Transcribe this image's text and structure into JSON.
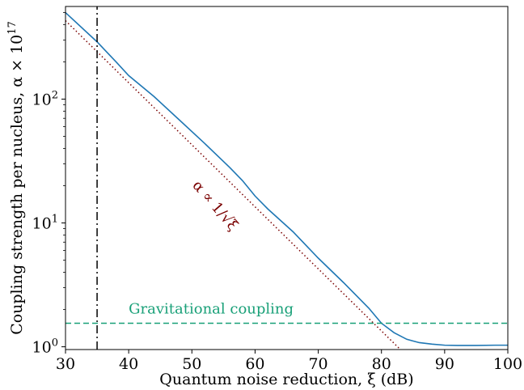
{
  "chart_data": {
    "type": "line",
    "xlabel": "Quantum noise reduction, ξ (dB)",
    "ylabel": "Coupling strength per nucleus, α × 10",
    "ylabel_exponent": "17",
    "xlim": [
      30,
      100
    ],
    "ylim": [
      0.95,
      560
    ],
    "yscale": "log",
    "grid": false,
    "x_ticks": [
      30,
      40,
      50,
      60,
      70,
      80,
      90,
      100
    ],
    "x_tick_labels": [
      "30",
      "40",
      "50",
      "60",
      "70",
      "80",
      "90",
      "100"
    ],
    "y_ticks": [
      1,
      10,
      100
    ],
    "y_tick_labels": [
      {
        "base": "10",
        "exp": "0"
      },
      {
        "base": "10",
        "exp": "1"
      },
      {
        "base": "10",
        "exp": "2"
      }
    ],
    "series": [
      {
        "style": "solid",
        "color": "#1f77b4",
        "x": [
          30,
          35,
          38,
          40,
          44,
          48,
          52,
          56,
          58,
          60,
          62,
          66,
          70,
          74,
          78,
          80,
          82,
          84,
          86,
          88,
          90,
          92,
          95,
          98,
          100
        ],
        "y": [
          500,
          290,
          200,
          155,
          105,
          68,
          44,
          28,
          22,
          16.5,
          13,
          8.5,
          5.2,
          3.3,
          2.05,
          1.55,
          1.3,
          1.15,
          1.08,
          1.05,
          1.03,
          1.025,
          1.025,
          1.03,
          1.03
        ]
      },
      {
        "style": "dotted",
        "color": "#7a0000",
        "x": [
          30,
          83
        ],
        "y": [
          430,
          0.95
        ]
      },
      {
        "style": "dashed",
        "color": "#19a078",
        "x": [
          30,
          100
        ],
        "y": [
          1.55,
          1.55
        ]
      },
      {
        "style": "dashdot",
        "color": "#000000",
        "x": [
          35,
          35
        ],
        "y": [
          0.95,
          560
        ]
      }
    ],
    "annotations": [
      {
        "text": "Gravitational coupling",
        "x": 40,
        "y": 1.85,
        "color": "#19a078"
      },
      {
        "text": "α ∝ 1/√ξ",
        "x": 50,
        "y": 20,
        "rotation": -49,
        "color": "#7a0000"
      }
    ]
  }
}
